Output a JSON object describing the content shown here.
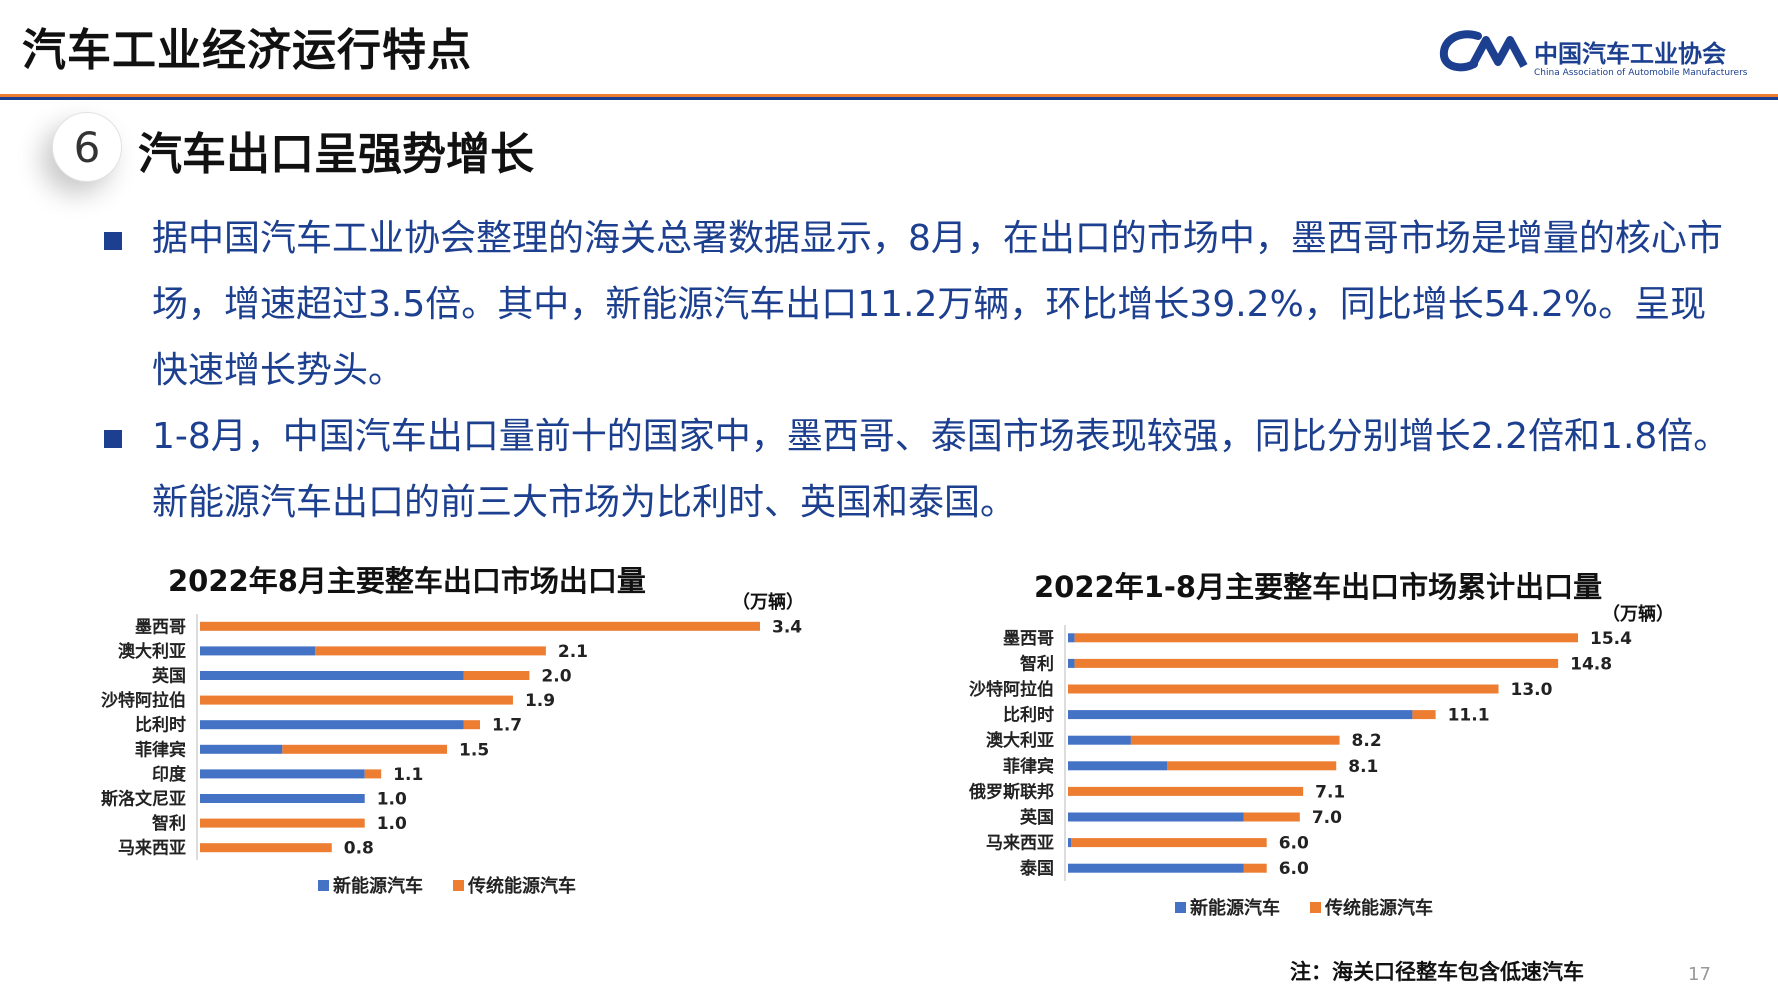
{
  "header": {
    "title": "汽车工业经济运行特点",
    "logo_name": "中国汽车工业协会",
    "logo_en": "China Association of Automobile Manufacturers"
  },
  "section": {
    "number": "6",
    "title": "汽车出口呈强势增长"
  },
  "bullets": [
    {
      "text": "据中国汽车工业协会整理的海关总署数据显示，8月，在出口的市场中，墨西哥市场是增量的核心市场，增速超过3.5倍。其中，新能源汽车出口11.2万辆，环比增长39.2%，同比增长54.2%。呈现快速增长势头。"
    },
    {
      "text": "1-8月，中国汽车出口量前十的国家中，墨西哥、泰国市场表现较强，同比分别增长2.2倍和1.8倍。新能源汽车出口的前三大市场为比利时、英国和泰国。"
    }
  ],
  "colors": {
    "nev": "#4472c4",
    "traditional": "#ed7d31",
    "axis": "#d0d0d0"
  },
  "chart_data": [
    {
      "type": "bar",
      "orientation": "horizontal",
      "stacked": true,
      "title": "2022年8月主要整车出口市场出口量",
      "unit": "（万辆）",
      "categories": [
        "墨西哥",
        "澳大利亚",
        "英国",
        "沙特阿拉伯",
        "比利时",
        "菲律宾",
        "印度",
        "斯洛文尼亚",
        "智利",
        "马来西亚"
      ],
      "totals": [
        3.4,
        2.1,
        2.0,
        1.9,
        1.7,
        1.5,
        1.1,
        1.0,
        1.0,
        0.8
      ],
      "total_labels": [
        "3.4",
        "2.1",
        "2.0",
        "1.9",
        "1.7",
        "1.5",
        "1.1",
        "1.0",
        "1.0",
        "0.8"
      ],
      "series": [
        {
          "name": "新能源汽车",
          "values": [
            0,
            0.7,
            1.6,
            0,
            1.6,
            0.5,
            1.0,
            1.0,
            0,
            0
          ]
        },
        {
          "name": "传统能源汽车",
          "values": [
            3.4,
            1.4,
            0.4,
            1.9,
            0.1,
            1.0,
            0.1,
            0,
            1.0,
            0.8
          ]
        }
      ],
      "xlim": [
        0,
        3.4
      ]
    },
    {
      "type": "bar",
      "orientation": "horizontal",
      "stacked": true,
      "title": "2022年1-8月主要整车出口市场累计出口量",
      "unit": "（万辆）",
      "categories": [
        "墨西哥",
        "智利",
        "沙特阿拉伯",
        "比利时",
        "澳大利亚",
        "菲律宾",
        "俄罗斯联邦",
        "英国",
        "马来西亚",
        "泰国"
      ],
      "totals": [
        15.4,
        14.8,
        13.0,
        11.1,
        8.2,
        8.1,
        7.1,
        7.0,
        6.0,
        6.0
      ],
      "total_labels": [
        "15.4",
        "14.8",
        "13.0",
        "11.1",
        "8.2",
        "8.1",
        "7.1",
        "7.0",
        "6.0",
        "6.0"
      ],
      "series": [
        {
          "name": "新能源汽车",
          "values": [
            0.2,
            0.2,
            0,
            10.4,
            1.9,
            3.0,
            0,
            5.3,
            0.1,
            5.3
          ]
        },
        {
          "name": "传统能源汽车",
          "values": [
            15.2,
            14.6,
            13.0,
            0.7,
            6.3,
            5.1,
            7.1,
            1.7,
            5.9,
            0.7
          ]
        }
      ],
      "xlim": [
        0,
        15.4
      ]
    }
  ],
  "note": "注：海关口径整车包含低速汽车",
  "page_number": "17"
}
